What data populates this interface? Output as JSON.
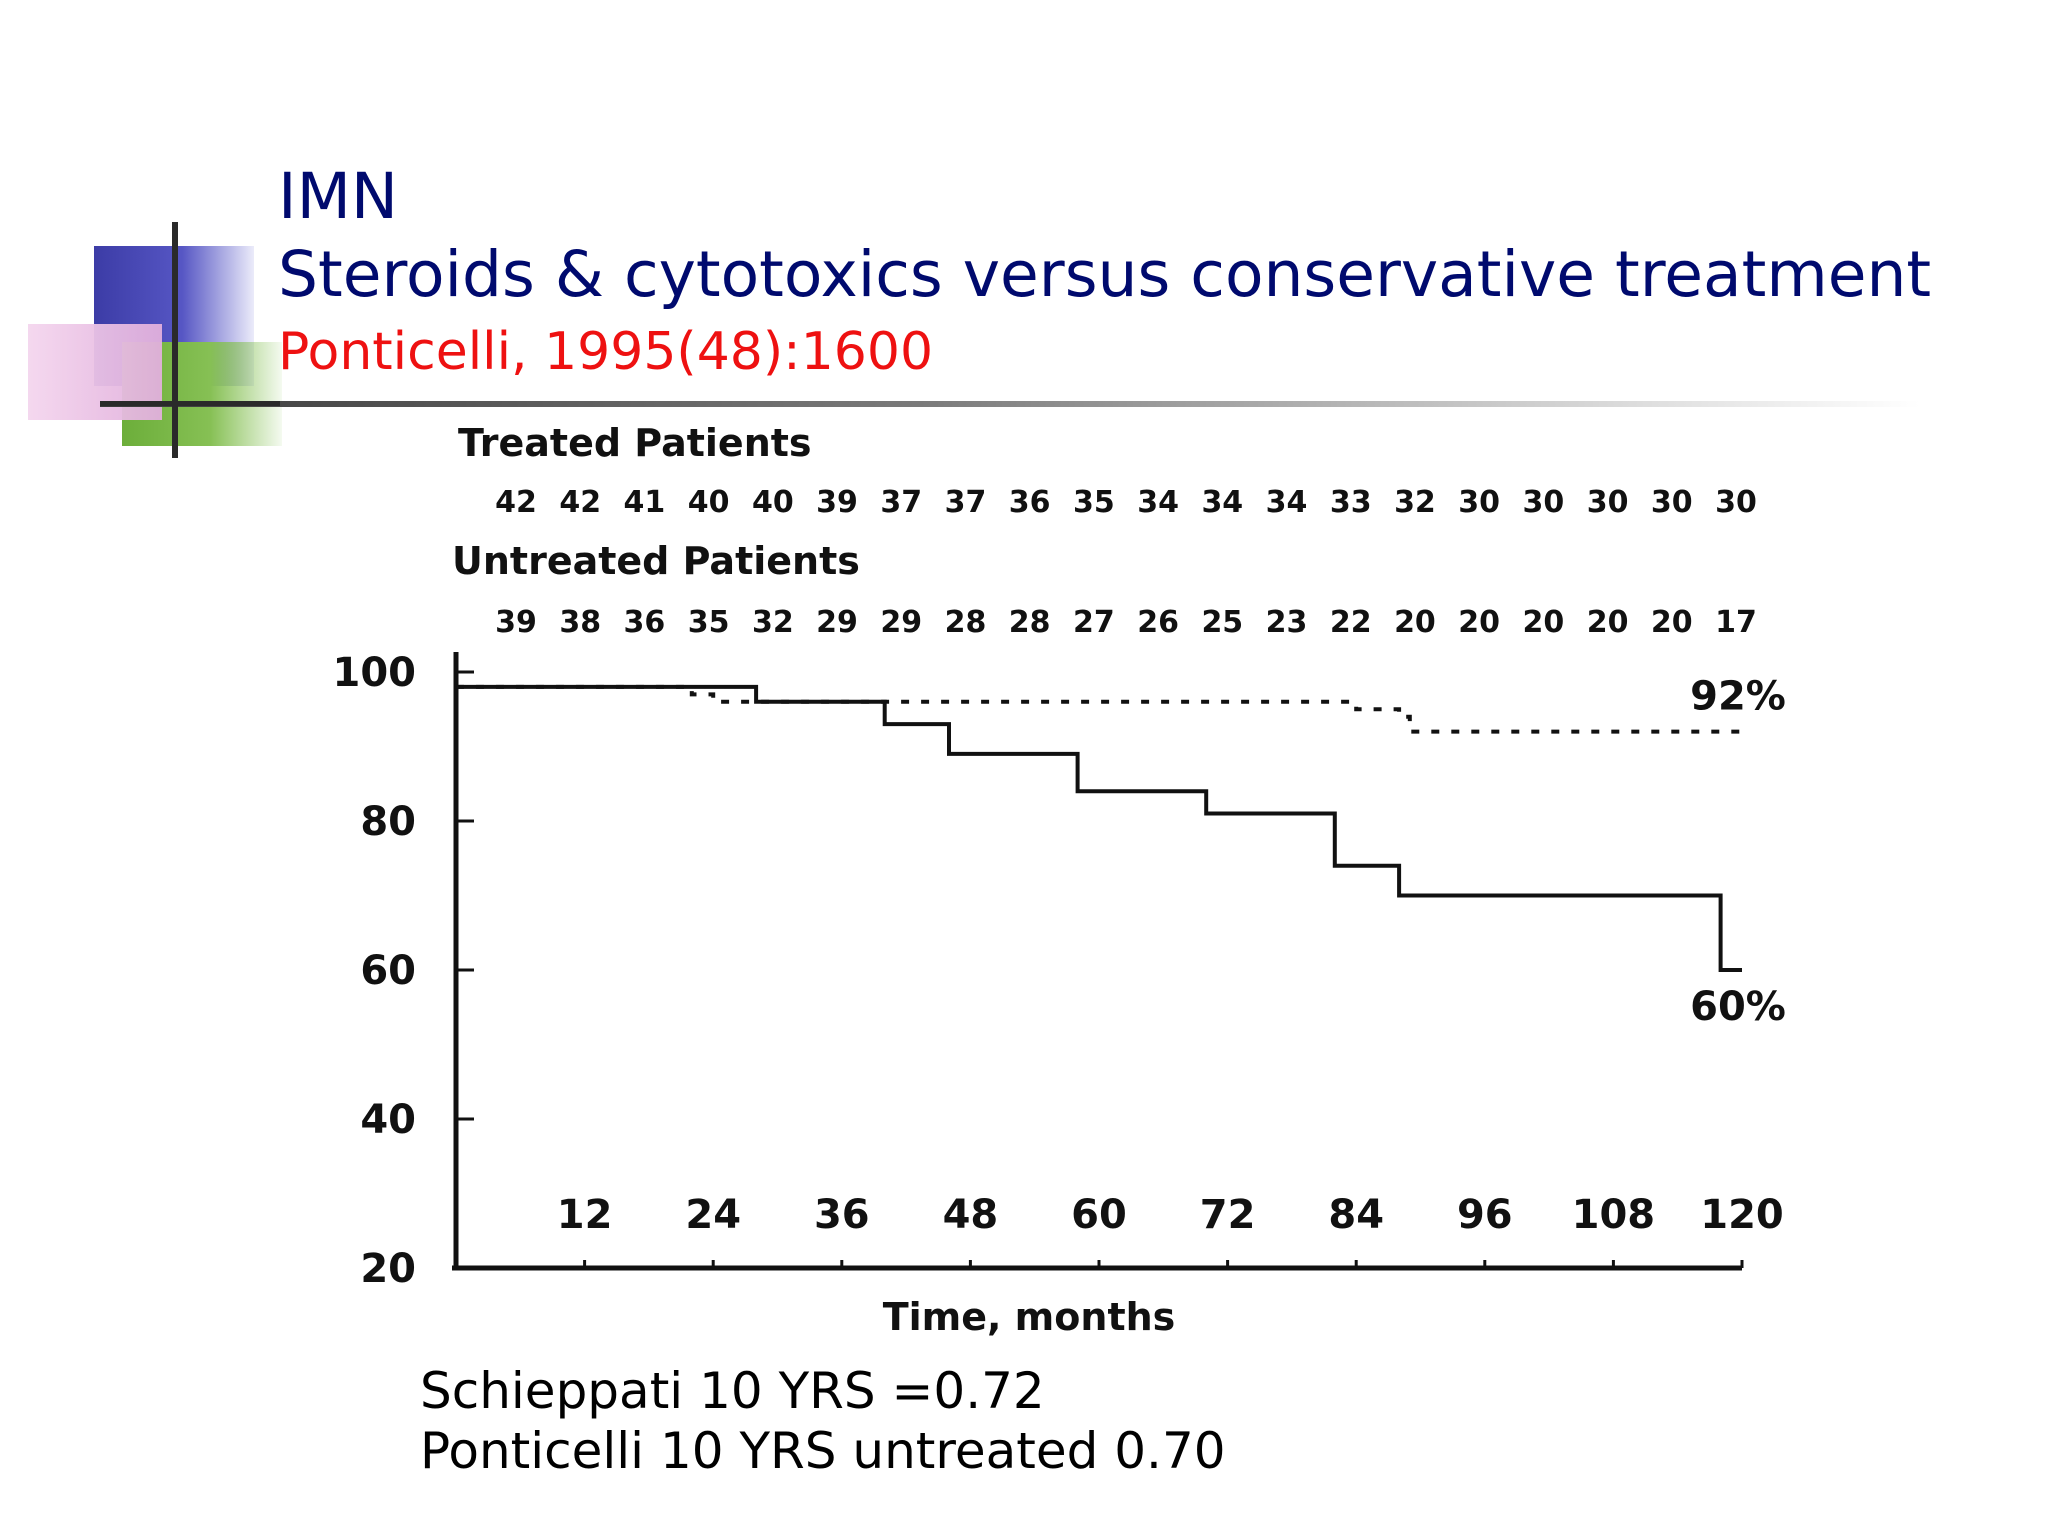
{
  "slide": {
    "title_line1": "IMN",
    "title_line2": "Steroids & cytotoxics versus conservative treatment",
    "citation": "Ponticelli, 1995(48):1600",
    "notes": [
      "Schieppati 10 YRS =0.72",
      "Ponticelli 10 YRS untreated 0.70"
    ],
    "colors": {
      "title": "#000a6e",
      "citation": "#ee1111"
    }
  },
  "chart_data": {
    "type": "line",
    "xlabel": "Time, months",
    "ylabel": "",
    "xlim": [
      0,
      120
    ],
    "ylim": [
      20,
      100
    ],
    "x_ticks": [
      12,
      24,
      36,
      48,
      60,
      72,
      84,
      96,
      108,
      120
    ],
    "y_ticks": [
      100,
      80,
      60,
      40,
      20
    ],
    "grid": false,
    "at_risk": {
      "treated_label": "Treated Patients",
      "treated": [
        "42",
        "42",
        "41",
        "40",
        "40",
        "39",
        "37",
        "37",
        "36",
        "35",
        "34",
        "34",
        "34",
        "33",
        "32",
        "30",
        "30",
        "30",
        "30",
        "30"
      ],
      "untreated_label": "Untreated Patients",
      "untreated": [
        "39",
        "38",
        "36",
        "35",
        "32",
        "29",
        "29",
        "28",
        "28",
        "27",
        "26",
        "25",
        "23",
        "22",
        "20",
        "20",
        "20",
        "20",
        "20",
        "17"
      ]
    },
    "series": [
      {
        "style": "dashed",
        "end_label": "92%",
        "points": [
          [
            0,
            98
          ],
          [
            22,
            98
          ],
          [
            22,
            97
          ],
          [
            24,
            97
          ],
          [
            24,
            96
          ],
          [
            84,
            96
          ],
          [
            84,
            95
          ],
          [
            88,
            95
          ],
          [
            88,
            94
          ],
          [
            89,
            94
          ],
          [
            89,
            92
          ],
          [
            120,
            92
          ]
        ]
      },
      {
        "style": "solid",
        "end_label": "60%",
        "points": [
          [
            0,
            98
          ],
          [
            28,
            98
          ],
          [
            28,
            96
          ],
          [
            40,
            96
          ],
          [
            40,
            93
          ],
          [
            46,
            93
          ],
          [
            46,
            89
          ],
          [
            58,
            89
          ],
          [
            58,
            84
          ],
          [
            70,
            84
          ],
          [
            70,
            81
          ],
          [
            82,
            81
          ],
          [
            82,
            74
          ],
          [
            88,
            74
          ],
          [
            88,
            70
          ],
          [
            118,
            70
          ],
          [
            118,
            60
          ],
          [
            120,
            60
          ]
        ]
      }
    ]
  }
}
